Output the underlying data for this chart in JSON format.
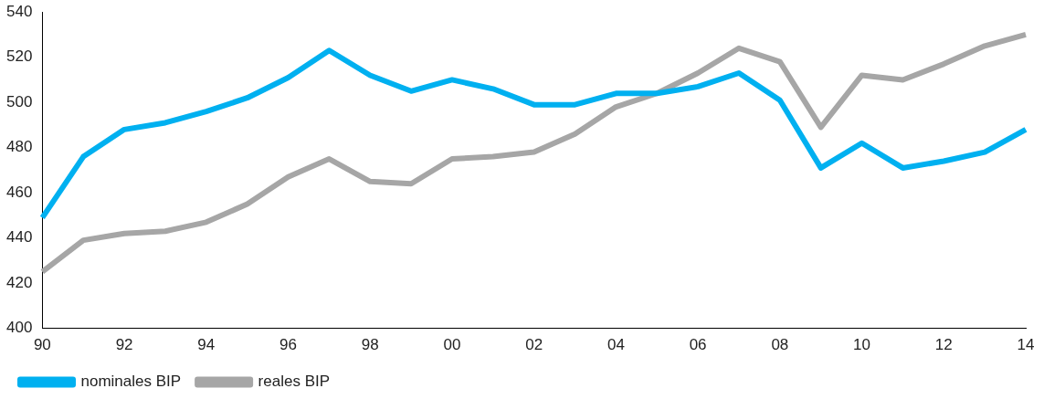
{
  "chart_data": {
    "type": "line",
    "categories": [
      "90",
      null,
      "92",
      null,
      "94",
      null,
      "96",
      null,
      "98",
      null,
      "00",
      null,
      "02",
      null,
      "04",
      null,
      "06",
      null,
      "08",
      null,
      "10",
      null,
      "12",
      null,
      "14"
    ],
    "series": [
      {
        "name": "nominales BIP",
        "color": "#00b0f0",
        "values": [
          449,
          476,
          488,
          491,
          496,
          502,
          511,
          523,
          512,
          505,
          510,
          506,
          499,
          499,
          504,
          504,
          507,
          513,
          501,
          471,
          482,
          471,
          474,
          478,
          488
        ]
      },
      {
        "name": "reales BIP",
        "color": "#a6a6a6",
        "values": [
          425,
          439,
          442,
          443,
          447,
          455,
          467,
          475,
          465,
          464,
          475,
          476,
          478,
          486,
          498,
          504,
          513,
          524,
          518,
          489,
          512,
          510,
          517,
          525,
          530
        ]
      }
    ],
    "ylim": [
      400,
      540
    ],
    "yticks": [
      400,
      420,
      440,
      460,
      480,
      500,
      520,
      540
    ],
    "grid": false,
    "legend": "bottom left",
    "marker": "none",
    "line_style": "solid"
  }
}
